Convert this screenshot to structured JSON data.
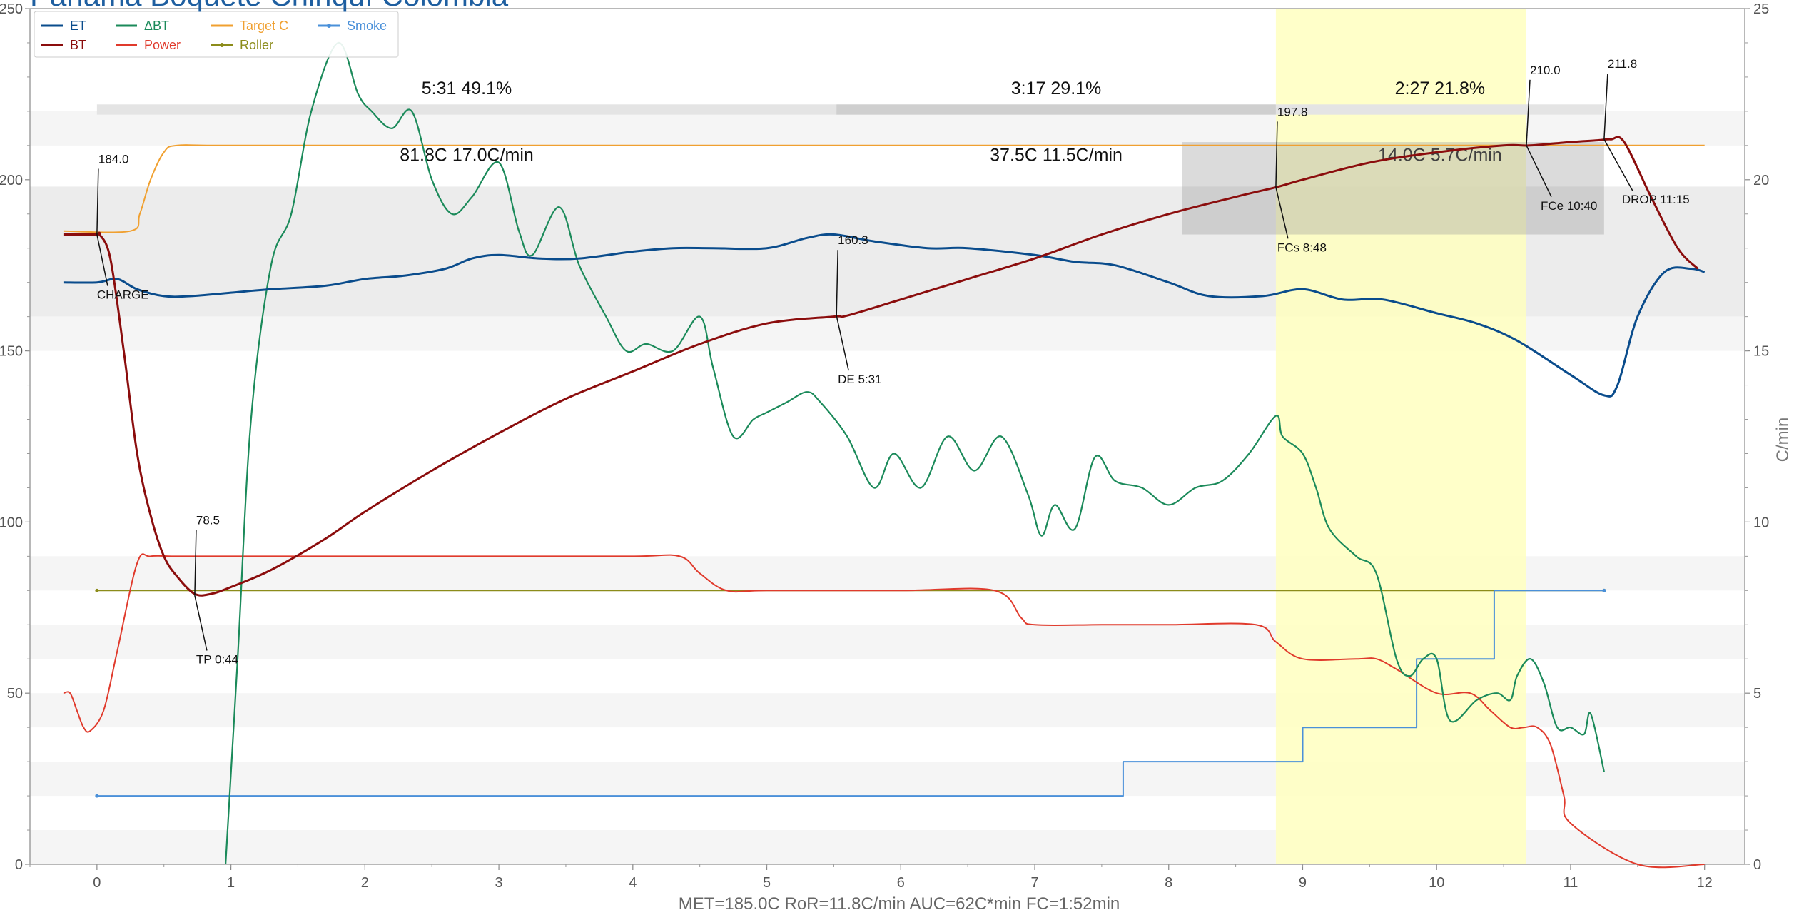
{
  "chart_data": {
    "type": "line",
    "title": "Panama Boquete Chiriquí Colombia",
    "xlabel": "",
    "ylabel": "",
    "y2label": "C/min",
    "xlim": [
      -0.5,
      12.3
    ],
    "ylim": [
      0,
      250
    ],
    "y2lim": [
      0,
      25
    ],
    "x_ticks": [
      0,
      1,
      2,
      3,
      4,
      5,
      6,
      7,
      8,
      9,
      10,
      11,
      12
    ],
    "y_ticks": [
      0,
      50,
      100,
      150,
      200,
      250
    ],
    "y2_ticks": [
      0,
      5,
      10,
      15,
      20,
      25
    ],
    "grid": "horizontal bands",
    "legend_position": "top-left",
    "colors": {
      "ET": "#0a4c8c",
      "BT": "#8b0d0d",
      "DeltaBT": "#1b8a5a",
      "Power": "#e03a2c",
      "TargetC": "#f0a030",
      "Roller": "#8c8c1a",
      "Smoke": "#4a90d9",
      "fc_span": "#ffffc0",
      "phase_band": "#dcdcdc"
    },
    "legend": [
      {
        "key": "ET",
        "label": "ET",
        "color": "#0a4c8c",
        "marker": "none"
      },
      {
        "key": "BT",
        "label": "BT",
        "color": "#8b0d0d",
        "marker": "none"
      },
      {
        "key": "DeltaBT",
        "label": "ΔBT",
        "color": "#1b8a5a",
        "marker": "none"
      },
      {
        "key": "Power",
        "label": "Power",
        "color": "#e03a2c",
        "marker": "none"
      },
      {
        "key": "TargetC",
        "label": "Target C",
        "color": "#f0a030",
        "marker": "none"
      },
      {
        "key": "Roller",
        "label": "Roller",
        "color": "#8c8c1a",
        "marker": "dot"
      },
      {
        "key": "Smoke",
        "label": "Smoke",
        "color": "#4a90d9",
        "marker": "dot"
      }
    ],
    "series": [
      {
        "name": "ET",
        "axis": "left",
        "x": [
          -0.25,
          0,
          0.15,
          0.3,
          0.5,
          0.7,
          1,
          1.3,
          1.7,
          2,
          2.3,
          2.6,
          2.8,
          3,
          3.3,
          3.6,
          4,
          4.3,
          4.6,
          5,
          5.3,
          5.5,
          5.8,
          6.2,
          6.5,
          7,
          7.3,
          7.6,
          8,
          8.3,
          8.7,
          9,
          9.3,
          9.6,
          10,
          10.3,
          10.6,
          11,
          11.25,
          11.35,
          11.5,
          11.7,
          11.9,
          12
        ],
        "y": [
          170,
          170,
          171,
          168,
          166,
          166,
          167,
          168,
          169,
          171,
          172,
          174,
          177,
          178,
          177,
          177,
          179,
          180,
          180,
          180,
          183,
          184,
          182,
          180,
          180,
          178,
          176,
          175,
          170,
          166,
          166,
          168,
          165,
          165,
          161,
          158,
          153,
          143,
          137,
          140,
          160,
          173,
          174,
          173
        ]
      },
      {
        "name": "BT",
        "axis": "left",
        "x": [
          -0.25,
          0,
          0.02,
          0.1,
          0.2,
          0.3,
          0.4,
          0.5,
          0.6,
          0.73,
          0.85,
          1,
          1.3,
          1.7,
          2,
          2.5,
          3,
          3.5,
          4,
          4.5,
          5,
          5.5,
          5.6,
          6,
          6.5,
          7,
          7.5,
          8,
          8.5,
          8.8,
          9,
          9.5,
          10,
          10.5,
          10.7,
          11,
          11.2,
          11.3,
          11.4,
          11.6,
          11.8,
          11.95
        ],
        "y": [
          184,
          184,
          184,
          177,
          150,
          120,
          102,
          90,
          84,
          79,
          79,
          81,
          86,
          95,
          103,
          115,
          126,
          136,
          144,
          152,
          158,
          160,
          160.3,
          165,
          171,
          177,
          184,
          190,
          195,
          197.8,
          200,
          205,
          208,
          210,
          210,
          211,
          211.5,
          211.8,
          211,
          195,
          180,
          174
        ]
      },
      {
        "name": "ΔBT",
        "axis": "right",
        "x": [
          0.96,
          1.05,
          1.15,
          1.3,
          1.45,
          1.6,
          1.8,
          1.95,
          2.05,
          2.2,
          2.35,
          2.5,
          2.65,
          2.8,
          3,
          3.15,
          3.25,
          3.45,
          3.6,
          3.8,
          3.95,
          4.1,
          4.3,
          4.5,
          4.6,
          4.75,
          4.9,
          5,
          5.15,
          5.3,
          5.4,
          5.6,
          5.8,
          5.95,
          6.15,
          6.35,
          6.55,
          6.75,
          6.95,
          7.05,
          7.15,
          7.3,
          7.45,
          7.6,
          7.8,
          8,
          8.2,
          8.4,
          8.6,
          8.8,
          8.85,
          9,
          9.1,
          9.2,
          9.4,
          9.55,
          9.7,
          9.8,
          9.9,
          10,
          10.1,
          10.3,
          10.45,
          10.55,
          10.6,
          10.7,
          10.8,
          10.9,
          11,
          11.1,
          11.15,
          11.25
        ],
        "y": [
          0,
          6,
          13,
          17.5,
          19,
          22,
          24,
          22.5,
          22,
          21.5,
          22,
          20,
          19,
          19.5,
          20.5,
          18.5,
          17.8,
          19.2,
          17.5,
          16,
          15,
          15.2,
          15,
          16,
          14.5,
          12.5,
          13,
          13.2,
          13.5,
          13.8,
          13.5,
          12.5,
          11,
          12,
          11,
          12.5,
          11.5,
          12.5,
          10.8,
          9.6,
          10.5,
          9.8,
          11.9,
          11.2,
          11,
          10.5,
          11,
          11.2,
          12,
          13.1,
          12.5,
          12,
          11,
          9.8,
          9,
          8.5,
          6,
          5.5,
          6,
          6,
          4.2,
          4.8,
          5,
          4.8,
          5.5,
          6,
          5.3,
          4,
          4,
          3.8,
          4.4,
          2.7
        ]
      },
      {
        "name": "Power",
        "axis": "left",
        "x": [
          -0.25,
          -0.2,
          -0.15,
          -0.1,
          -0.05,
          0.05,
          0.15,
          0.3,
          0.4,
          0.6,
          1,
          2,
          3,
          4,
          4.35,
          4.5,
          4.7,
          5,
          6,
          6.7,
          6.9,
          7,
          7.5,
          8,
          8.65,
          8.8,
          9,
          9.4,
          9.55,
          9.7,
          10,
          10.25,
          10.4,
          10.55,
          10.65,
          10.75,
          10.85,
          10.95,
          11,
          11.5,
          12
        ],
        "y": [
          50,
          50,
          45,
          40,
          39,
          45,
          62,
          88,
          90,
          90,
          90,
          90,
          90,
          90,
          90,
          85,
          80,
          80,
          80,
          80,
          72,
          70,
          70,
          70,
          70,
          65,
          60,
          60,
          60,
          57,
          50,
          50,
          45,
          40,
          40,
          40,
          35,
          20,
          12,
          0,
          0
        ]
      },
      {
        "name": "Target C",
        "axis": "left",
        "x": [
          -0.25,
          0.25,
          0.32,
          0.4,
          0.5,
          0.6,
          1,
          3,
          6,
          9,
          11,
          12
        ],
        "y": [
          185,
          185,
          190,
          200,
          208,
          210,
          210,
          210,
          210,
          210,
          210,
          210
        ]
      },
      {
        "name": "Roller",
        "axis": "left",
        "x": [
          0,
          3,
          6,
          9,
          11.25
        ],
        "y": [
          80,
          80,
          80,
          80,
          80
        ]
      },
      {
        "name": "Smoke",
        "axis": "left",
        "x": [
          0,
          7.66,
          7.66,
          9,
          9,
          9.85,
          9.85,
          10.43,
          10.43,
          11.25
        ],
        "y": [
          20,
          20,
          30,
          30,
          40,
          40,
          60,
          60,
          80,
          80
        ]
      }
    ],
    "bands": [
      {
        "range": [
          160,
          198
        ],
        "shade": "light"
      },
      {
        "range": [
          0,
          10
        ],
        "shade": "faint"
      },
      {
        "range": [
          20,
          30
        ],
        "shade": "faint"
      },
      {
        "range": [
          40,
          50
        ],
        "shade": "faint"
      },
      {
        "range": [
          60,
          70
        ],
        "shade": "faint"
      },
      {
        "range": [
          80,
          90
        ],
        "shade": "faint"
      },
      {
        "range": [
          150,
          160
        ],
        "shade": "faint"
      },
      {
        "range": [
          210,
          220
        ],
        "shade": "faint"
      }
    ],
    "first_crack_span": [
      8.8,
      10.67
    ],
    "phases": [
      {
        "from": 0,
        "to": 5.52,
        "time_label": "5:31  49.1%",
        "delta_label": "81.8C  17.0C/min",
        "band_shade": "light"
      },
      {
        "from": 5.52,
        "to": 8.8,
        "time_label": "3:17  29.1%",
        "delta_label": "37.5C  11.5C/min",
        "band_shade": "dark"
      },
      {
        "from": 8.8,
        "to": 11.25,
        "time_label": "2:27  21.8%",
        "delta_label": "14.0C  5.7C/min",
        "band_shade": "light"
      }
    ],
    "annotations": [
      {
        "value_label": "184.0",
        "event_label": "CHARGE",
        "x": 0,
        "y": 184
      },
      {
        "value_label": "78.5",
        "event_label": "TP 0:44",
        "x": 0.73,
        "y": 78.5
      },
      {
        "value_label": "160.3",
        "event_label": "DE 5:31",
        "x": 5.52,
        "y": 160.3
      },
      {
        "value_label": "197.8",
        "event_label": "FCs 8:48",
        "x": 8.8,
        "y": 197.8
      },
      {
        "value_label": "210.0",
        "event_label": "FCe 10:40",
        "x": 10.67,
        "y": 210
      },
      {
        "value_label": "211.8",
        "event_label": "DROP 11:15",
        "x": 11.25,
        "y": 211.8
      }
    ],
    "footer": "MET=185.0C   RoR=11.8C/min   AUC=62C*min   FC=1:52min"
  }
}
